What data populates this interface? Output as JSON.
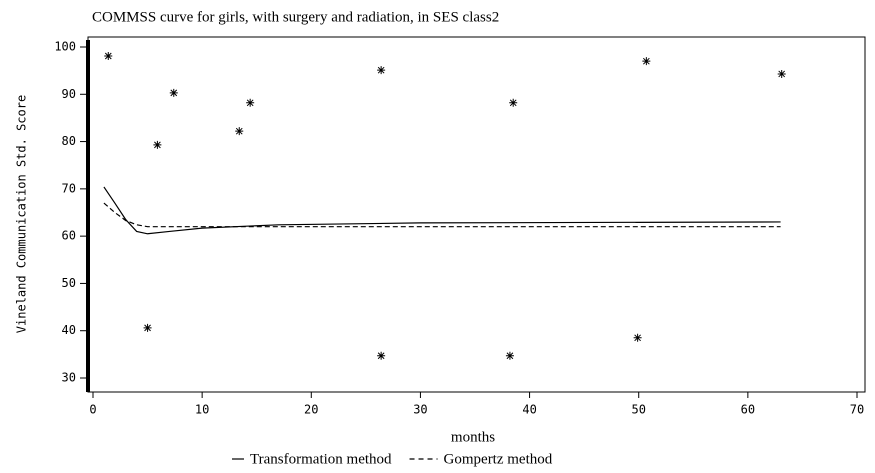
{
  "chart_data": {
    "type": "scatter-line",
    "title": "COMMSS curve for girls, with surgery and radiation, in SES class2",
    "x_label": "months",
    "y_label": "Vineland Communication Std. Score",
    "xlim": [
      0,
      70
    ],
    "xticks": [
      0,
      10,
      20,
      30,
      40,
      50,
      60,
      70
    ],
    "ylim": [
      30,
      100
    ],
    "yticks": [
      30,
      40,
      50,
      60,
      70,
      80,
      90,
      100
    ],
    "points": {
      "color": "#000000",
      "x": [
        1.4,
        7.4,
        5.9,
        13.4,
        14.4,
        26.4,
        38.5,
        50.7,
        63.1,
        5.0,
        26.4,
        38.2,
        49.9
      ],
      "y": [
        98.1,
        90.3,
        79.3,
        82.2,
        88.2,
        95.1,
        88.2,
        97,
        94.3,
        40.6,
        34.7,
        34.7,
        38.5
      ]
    },
    "series": [
      {
        "name": "Transformation method",
        "color": "#000000",
        "dash": "solid",
        "x": [
          1,
          2,
          3,
          4,
          5,
          7,
          10,
          17,
          30,
          63
        ],
        "values": [
          70.4,
          67,
          63.5,
          61,
          60.5,
          61,
          61.7,
          62.4,
          62.8,
          63
        ]
      },
      {
        "name": "Gompertz method",
        "color": "#000000",
        "dash": "dashed",
        "x": [
          1,
          2,
          3,
          4,
          5,
          10,
          63
        ],
        "values": [
          67,
          65,
          63.3,
          62.4,
          62,
          62,
          62
        ]
      }
    ]
  }
}
